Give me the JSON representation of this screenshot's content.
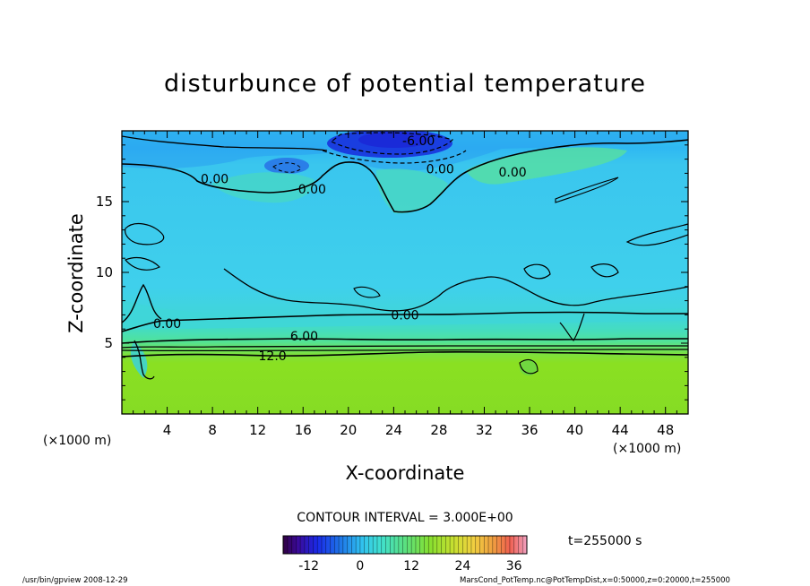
{
  "chart_data": {
    "type": "contour",
    "title": "disturbunce of potential temperature",
    "xlabel": "X-coordinate",
    "ylabel": "Z-coordinate",
    "x_unit_left": "(×1000 m)",
    "x_unit_right": "(×1000 m)",
    "xlim": [
      0,
      50
    ],
    "ylim": [
      0,
      20
    ],
    "x_ticks": [
      4,
      8,
      12,
      16,
      20,
      24,
      28,
      32,
      36,
      40,
      44,
      48
    ],
    "y_ticks": [
      5,
      10,
      15
    ],
    "contour_interval_text": "CONTOUR INTERVAL = 3.000E+00",
    "contour_labels": [
      {
        "text": "-6.00",
        "x": 26.2,
        "z": 19.3
      },
      {
        "text": "0.00",
        "x": 8.2,
        "z": 16.6
      },
      {
        "text": "0.00",
        "x": 16.8,
        "z": 15.9
      },
      {
        "text": "0.00",
        "x": 28.1,
        "z": 17.3
      },
      {
        "text": "0.00",
        "x": 34.5,
        "z": 17.1
      },
      {
        "text": "0.00",
        "x": 4.0,
        "z": 6.4
      },
      {
        "text": "0.00",
        "x": 25.0,
        "z": 7.0
      },
      {
        "text": "6.00",
        "x": 16.1,
        "z": 5.5
      },
      {
        "text": "12.0",
        "x": 13.3,
        "z": 4.1
      }
    ],
    "colorbar": {
      "min": -18,
      "max": 39,
      "tick_labels": [
        -12,
        0,
        12,
        24,
        36
      ],
      "tick_values": [
        -12,
        0,
        12,
        24,
        36
      ]
    },
    "time_label": "t=255000 s",
    "grid": false
  },
  "footer": {
    "left": "/usr/bin/gpview   2008-12-29",
    "right": "MarsCond_PotTemp.nc@PotTempDist,x=0:50000,z=0:20000,t=255000"
  },
  "colors": {
    "plot_upper": "#33ccf0",
    "plot_lower": "#88e020",
    "plot_top_blue": "#1f6fe0",
    "plot_deep_blue": "#1a2ae0"
  }
}
